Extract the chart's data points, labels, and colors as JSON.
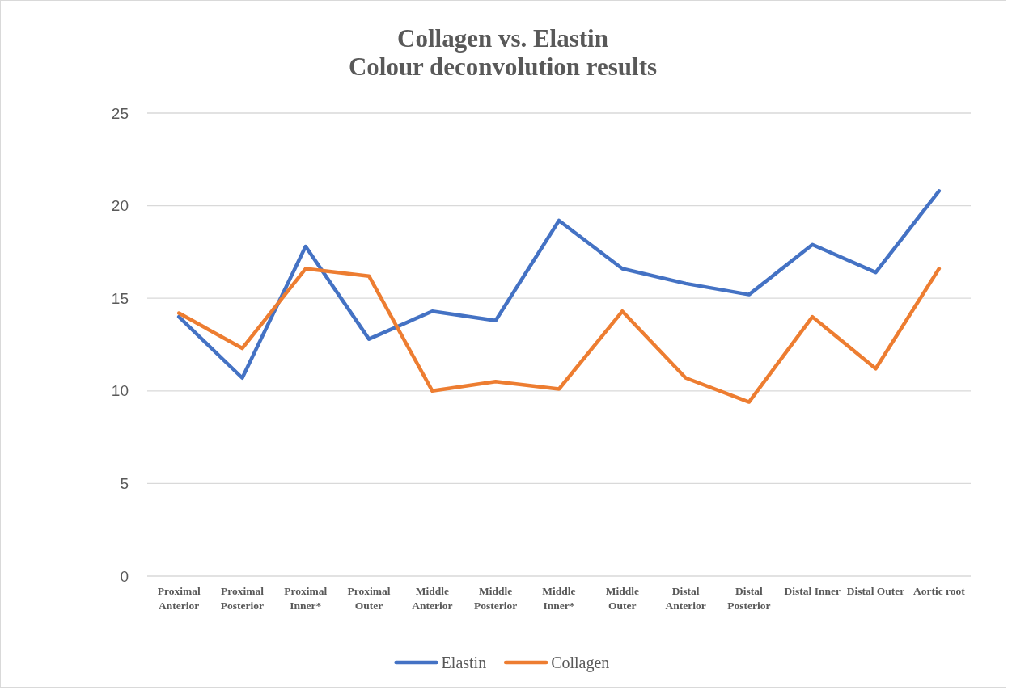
{
  "chart_data": {
    "type": "line",
    "title": "Collagen vs. Elastin\nColour deconvolution results",
    "categories": [
      "Proximal Anterior",
      "Proximal Posterior",
      "Proximal Inner*",
      "Proximal Outer",
      "Middle Anterior",
      "Middle Posterior",
      "Middle Inner*",
      "Middle Outer",
      "Distal Anterior",
      "Distal Posterior",
      "Distal Inner",
      "Distal Outer",
      "Aortic root"
    ],
    "series": [
      {
        "name": "Elastin",
        "color": "#4472c4",
        "values": [
          14.0,
          10.7,
          17.8,
          12.8,
          14.3,
          13.8,
          19.2,
          16.6,
          15.8,
          15.2,
          17.9,
          16.4,
          20.8
        ]
      },
      {
        "name": "Collagen",
        "color": "#ed7d31",
        "values": [
          14.2,
          12.3,
          16.6,
          16.2,
          10.0,
          10.5,
          10.1,
          14.3,
          10.7,
          9.4,
          14.0,
          11.2,
          16.6
        ]
      }
    ],
    "ylim": [
      0,
      25
    ],
    "yticks": [
      0,
      5,
      10,
      15,
      20,
      25
    ],
    "grid": "y",
    "legend": "bottom",
    "marker": "none",
    "line_style": "solid"
  }
}
